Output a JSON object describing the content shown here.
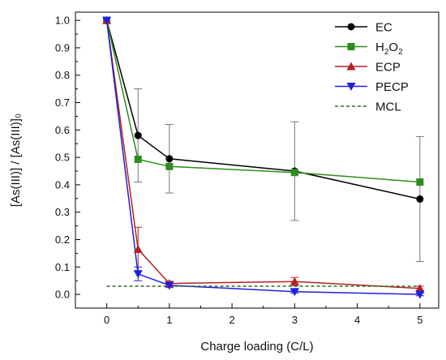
{
  "chart_data": {
    "type": "line",
    "xlabel": "Charge loading (C/L)",
    "ylabel": "[As(III)] / [As(III)]₀",
    "xlim": [
      -0.5,
      5.3
    ],
    "ylim": [
      -0.05,
      1.03
    ],
    "xticks": [
      0,
      1,
      2,
      3,
      4,
      5
    ],
    "yticks": [
      0.0,
      0.1,
      0.2,
      0.3,
      0.4,
      0.5,
      0.6,
      0.7,
      0.8,
      0.9,
      1.0
    ],
    "ytick_labels": [
      "0.0",
      "0.1",
      "0.2",
      "0.3",
      "0.4",
      "0.5",
      "0.6",
      "0.7",
      "0.8",
      "0.9",
      "1.0"
    ],
    "legend_position": "top-right",
    "grid": false,
    "series": [
      {
        "name": "EC",
        "color": "#000000",
        "marker": "circle",
        "x": [
          0,
          0.5,
          1,
          3,
          5
        ],
        "y": [
          1.0,
          0.58,
          0.495,
          0.45,
          0.348
        ],
        "error": [
          0,
          0.17,
          0.125,
          0.18,
          0.228
        ]
      },
      {
        "name": "H2O2",
        "color": "#2e8b1e",
        "marker": "square",
        "x": [
          0,
          0.5,
          1,
          3,
          5
        ],
        "y": [
          1.0,
          0.493,
          0.467,
          0.445,
          0.41
        ],
        "error": [
          0,
          0,
          0,
          0,
          0
        ]
      },
      {
        "name": "ECP",
        "color": "#b22222",
        "marker": "triangle-up",
        "x": [
          0,
          0.5,
          1,
          3,
          5
        ],
        "y": [
          1.0,
          0.165,
          0.04,
          0.047,
          0.022
        ],
        "error": [
          0,
          0.08,
          0.008,
          0.015,
          0.008
        ]
      },
      {
        "name": "PECP",
        "color": "#1f1fe0",
        "marker": "triangle-down",
        "x": [
          0,
          0.5,
          1,
          3,
          5
        ],
        "y": [
          1.0,
          0.075,
          0.033,
          0.01,
          0.0
        ],
        "error": [
          0,
          0.025,
          0.008,
          0.005,
          0.005
        ]
      },
      {
        "name": "MCL",
        "color": "#2e6b1e",
        "marker": "none",
        "dashed": true,
        "x": [
          0,
          5
        ],
        "y": [
          0.03,
          0.03
        ],
        "error": [
          0,
          0
        ]
      }
    ]
  }
}
